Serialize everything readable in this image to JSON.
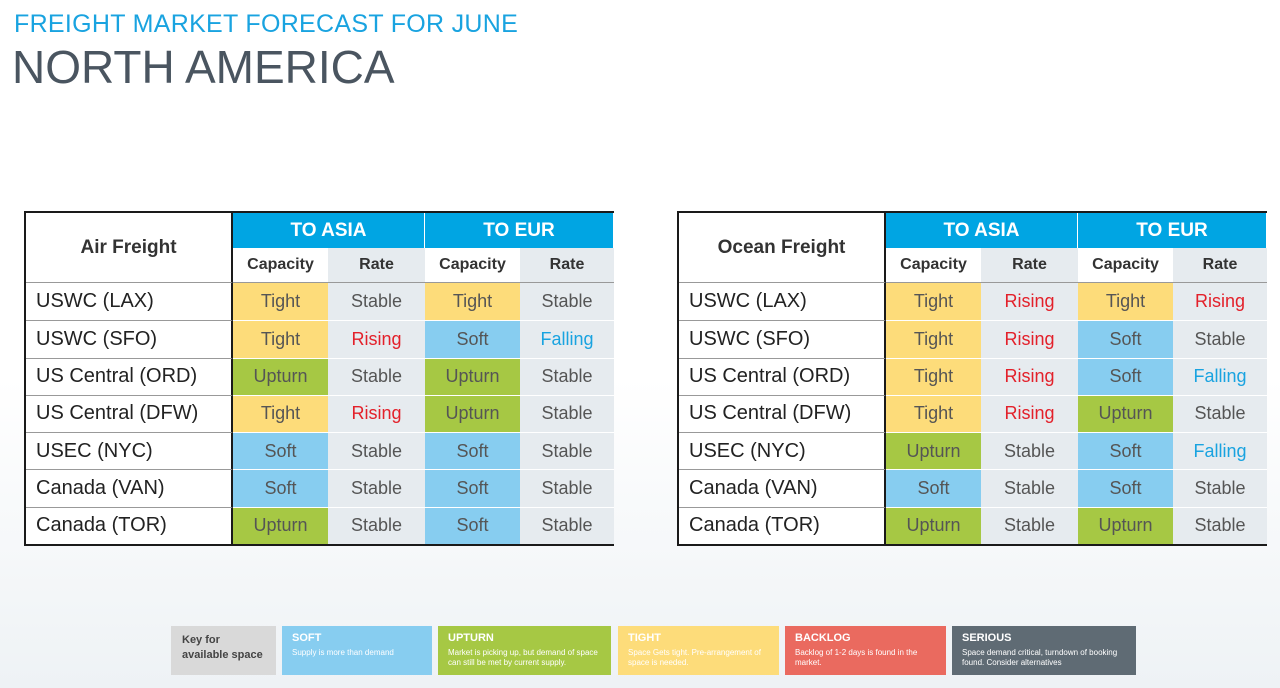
{
  "header": {
    "subtitle": "FREIGHT MARKET FORECAST FOR JUNE",
    "title": "NORTH AMERICA"
  },
  "tables": [
    {
      "title": "Air Freight",
      "groups": [
        "TO ASIA",
        "TO EUR"
      ],
      "columns": [
        "Capacity",
        "Rate",
        "Capacity",
        "Rate"
      ],
      "rows": [
        [
          "USWC (LAX)",
          "Tight",
          "Stable",
          "Tight",
          "Stable"
        ],
        [
          "USWC (SFO)",
          "Tight",
          "Rising",
          "Soft",
          "Falling"
        ],
        [
          "US Central (ORD)",
          "Upturn",
          "Stable",
          "Upturn",
          "Stable"
        ],
        [
          "US Central (DFW)",
          "Tight",
          "Rising",
          "Upturn",
          "Stable"
        ],
        [
          "USEC (NYC)",
          "Soft",
          "Stable",
          "Soft",
          "Stable"
        ],
        [
          "Canada (VAN)",
          "Soft",
          "Stable",
          "Soft",
          "Stable"
        ],
        [
          "Canada (TOR)",
          "Upturn",
          "Stable",
          "Soft",
          "Stable"
        ]
      ]
    },
    {
      "title": "Ocean Freight",
      "groups": [
        "TO ASIA",
        "TO EUR"
      ],
      "columns": [
        "Capacity",
        "Rate",
        "Capacity",
        "Rate"
      ],
      "rows": [
        [
          "USWC (LAX)",
          "Tight",
          "Rising",
          "Tight",
          "Rising"
        ],
        [
          "USWC (SFO)",
          "Tight",
          "Rising",
          "Soft",
          "Stable"
        ],
        [
          "US Central (ORD)",
          "Tight",
          "Rising",
          "Soft",
          "Falling"
        ],
        [
          "US Central (DFW)",
          "Tight",
          "Rising",
          "Upturn",
          "Stable"
        ],
        [
          "USEC (NYC)",
          "Upturn",
          "Stable",
          "Soft",
          "Falling"
        ],
        [
          "Canada (VAN)",
          "Soft",
          "Stable",
          "Soft",
          "Stable"
        ],
        [
          "Canada (TOR)",
          "Upturn",
          "Stable",
          "Upturn",
          "Stable"
        ]
      ]
    }
  ],
  "key": {
    "label": "Key for available space",
    "items": [
      {
        "name": "SOFT",
        "description": "Supply is more than demand"
      },
      {
        "name": "UPTURN",
        "description": "Market is picking  up, but demand of space can still be met by current supply."
      },
      {
        "name": "TIGHT",
        "description": "Space Gets tight. Pre-arrangement of space is needed."
      },
      {
        "name": "BACKLOG",
        "description": "Backlog of 1-2 days is found in the market."
      },
      {
        "name": "SERIOUS",
        "description": "Space demand critical, turndown of booking found. Consider alternatives"
      }
    ]
  }
}
